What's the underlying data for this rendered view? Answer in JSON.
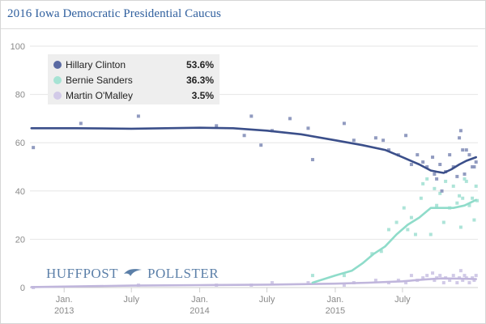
{
  "header": {
    "title": "2016 Iowa Democratic Presidential Caucus"
  },
  "brand": {
    "left": "HUFFPOST",
    "right": "POLLSTER"
  },
  "chart_data": {
    "type": "line",
    "title": "2016 Iowa Democratic Presidential Caucus",
    "ylim": [
      0,
      100
    ],
    "xlim": [
      "2012-10-01",
      "2016-01-20"
    ],
    "yticks": [
      0,
      20,
      40,
      60,
      80,
      100
    ],
    "xticks": [
      {
        "date": "2013-01-01",
        "label": "Jan.",
        "sub": "2013"
      },
      {
        "date": "2013-07-01",
        "label": "July",
        "sub": ""
      },
      {
        "date": "2014-01-01",
        "label": "Jan.",
        "sub": "2014"
      },
      {
        "date": "2014-07-01",
        "label": "July",
        "sub": ""
      },
      {
        "date": "2015-01-01",
        "label": "Jan.",
        "sub": "2015"
      },
      {
        "date": "2015-07-01",
        "label": "July",
        "sub": ""
      }
    ],
    "grid": true,
    "legend_position": "top-left",
    "series": [
      {
        "name": "Hillary Clinton",
        "latest": "53.6%",
        "color": "#3b4f8a",
        "dot_color": "#8b96bd",
        "trend": [
          [
            "2012-10-05",
            66
          ],
          [
            "2013-02-01",
            66
          ],
          [
            "2013-07-01",
            65.8
          ],
          [
            "2014-01-01",
            66.2
          ],
          [
            "2014-04-01",
            66
          ],
          [
            "2014-07-01",
            65
          ],
          [
            "2014-10-01",
            63.5
          ],
          [
            "2015-01-01",
            61
          ],
          [
            "2015-03-15",
            59
          ],
          [
            "2015-05-15",
            57
          ],
          [
            "2015-07-01",
            54
          ],
          [
            "2015-08-15",
            51
          ],
          [
            "2015-09-15",
            48.5
          ],
          [
            "2015-10-01",
            48
          ],
          [
            "2015-10-20",
            47.5
          ],
          [
            "2015-11-10",
            49
          ],
          [
            "2015-12-01",
            51
          ],
          [
            "2015-12-20",
            52.5
          ],
          [
            "2016-01-15",
            54
          ]
        ],
        "polls": [
          [
            "2012-10-10",
            58
          ],
          [
            "2013-02-15",
            68
          ],
          [
            "2013-07-20",
            71
          ],
          [
            "2014-02-15",
            67
          ],
          [
            "2014-05-01",
            63
          ],
          [
            "2014-05-20",
            71
          ],
          [
            "2014-06-15",
            59
          ],
          [
            "2014-07-15",
            65
          ],
          [
            "2014-09-01",
            70
          ],
          [
            "2014-10-20",
            66
          ],
          [
            "2014-11-01",
            53
          ],
          [
            "2015-01-25",
            68
          ],
          [
            "2015-02-20",
            61
          ],
          [
            "2015-04-20",
            62
          ],
          [
            "2015-05-10",
            61
          ],
          [
            "2015-05-25",
            57
          ],
          [
            "2015-06-20",
            55
          ],
          [
            "2015-07-10",
            63
          ],
          [
            "2015-07-25",
            51
          ],
          [
            "2015-08-10",
            55
          ],
          [
            "2015-08-25",
            52
          ],
          [
            "2015-09-05",
            50
          ],
          [
            "2015-09-20",
            54
          ],
          [
            "2015-09-25",
            47
          ],
          [
            "2015-10-01",
            45
          ],
          [
            "2015-10-10",
            51
          ],
          [
            "2015-10-15",
            40
          ],
          [
            "2015-10-25",
            48
          ],
          [
            "2015-11-05",
            55
          ],
          [
            "2015-11-15",
            50
          ],
          [
            "2015-11-25",
            46
          ],
          [
            "2015-12-01",
            62
          ],
          [
            "2015-12-05",
            65
          ],
          [
            "2015-12-10",
            57
          ],
          [
            "2015-12-15",
            47
          ],
          [
            "2015-12-20",
            57
          ],
          [
            "2015-12-28",
            55
          ],
          [
            "2016-01-05",
            50
          ],
          [
            "2016-01-10",
            50
          ],
          [
            "2016-01-15",
            52
          ]
        ]
      },
      {
        "name": "Bernie Sanders",
        "latest": "36.3%",
        "color": "#8fdcca",
        "dot_color": "#a9e3d6",
        "trend": [
          [
            "2014-11-01",
            2
          ],
          [
            "2015-01-01",
            5
          ],
          [
            "2015-02-15",
            7
          ],
          [
            "2015-03-15",
            10
          ],
          [
            "2015-04-15",
            14
          ],
          [
            "2015-05-15",
            17
          ],
          [
            "2015-06-15",
            22
          ],
          [
            "2015-07-15",
            26
          ],
          [
            "2015-08-15",
            29
          ],
          [
            "2015-09-15",
            33
          ],
          [
            "2015-10-15",
            33
          ],
          [
            "2015-11-15",
            33
          ],
          [
            "2015-12-15",
            34
          ],
          [
            "2016-01-15",
            36.3
          ]
        ],
        "polls": [
          [
            "2014-11-01",
            5
          ],
          [
            "2015-01-25",
            5
          ],
          [
            "2015-04-10",
            14
          ],
          [
            "2015-05-05",
            15
          ],
          [
            "2015-05-25",
            24
          ],
          [
            "2015-06-15",
            27
          ],
          [
            "2015-07-05",
            33
          ],
          [
            "2015-07-15",
            24
          ],
          [
            "2015-07-25",
            29
          ],
          [
            "2015-08-05",
            22
          ],
          [
            "2015-08-20",
            37
          ],
          [
            "2015-08-25",
            43
          ],
          [
            "2015-09-05",
            45
          ],
          [
            "2015-09-15",
            22
          ],
          [
            "2015-09-25",
            41
          ],
          [
            "2015-10-01",
            34
          ],
          [
            "2015-10-10",
            39
          ],
          [
            "2015-10-20",
            27
          ],
          [
            "2015-10-25",
            44
          ],
          [
            "2015-11-05",
            33
          ],
          [
            "2015-11-15",
            42
          ],
          [
            "2015-11-25",
            35
          ],
          [
            "2015-12-01",
            38
          ],
          [
            "2015-12-05",
            25
          ],
          [
            "2015-12-10",
            37
          ],
          [
            "2015-12-15",
            45
          ],
          [
            "2015-12-20",
            44
          ],
          [
            "2015-12-28",
            34
          ],
          [
            "2016-01-05",
            37
          ],
          [
            "2016-01-10",
            28
          ],
          [
            "2016-01-15",
            42
          ],
          [
            "2016-01-18",
            36
          ]
        ]
      },
      {
        "name": "Martin O'Malley",
        "latest": "3.5%",
        "color": "#c0b6dc",
        "dot_color": "#cfc7e6",
        "trend": [
          [
            "2012-10-05",
            0.2
          ],
          [
            "2013-07-01",
            0.8
          ],
          [
            "2014-01-01",
            1.0
          ],
          [
            "2014-07-01",
            1.2
          ],
          [
            "2015-01-01",
            1.6
          ],
          [
            "2015-04-01",
            2.0
          ],
          [
            "2015-07-01",
            2.6
          ],
          [
            "2015-09-01",
            3.4
          ],
          [
            "2015-10-15",
            3.8
          ],
          [
            "2015-12-01",
            3.7
          ],
          [
            "2016-01-15",
            3.5
          ]
        ],
        "polls": [
          [
            "2012-10-10",
            0
          ],
          [
            "2013-07-20",
            1
          ],
          [
            "2014-02-15",
            1
          ],
          [
            "2014-05-20",
            1
          ],
          [
            "2014-07-15",
            2
          ],
          [
            "2014-10-20",
            2
          ],
          [
            "2015-01-25",
            1
          ],
          [
            "2015-02-20",
            2
          ],
          [
            "2015-04-20",
            3
          ],
          [
            "2015-05-25",
            2
          ],
          [
            "2015-06-20",
            3
          ],
          [
            "2015-07-10",
            2
          ],
          [
            "2015-07-25",
            5
          ],
          [
            "2015-08-10",
            3
          ],
          [
            "2015-08-25",
            4
          ],
          [
            "2015-09-05",
            5
          ],
          [
            "2015-09-20",
            6
          ],
          [
            "2015-09-25",
            3
          ],
          [
            "2015-10-01",
            4
          ],
          [
            "2015-10-10",
            5
          ],
          [
            "2015-10-20",
            2
          ],
          [
            "2015-10-25",
            4
          ],
          [
            "2015-11-05",
            3
          ],
          [
            "2015-11-15",
            5
          ],
          [
            "2015-11-25",
            2
          ],
          [
            "2015-12-01",
            4
          ],
          [
            "2015-12-05",
            7
          ],
          [
            "2015-12-10",
            3
          ],
          [
            "2015-12-15",
            5
          ],
          [
            "2015-12-20",
            4
          ],
          [
            "2015-12-28",
            2
          ],
          [
            "2016-01-05",
            4
          ],
          [
            "2016-01-10",
            3
          ],
          [
            "2016-01-15",
            5
          ]
        ]
      }
    ]
  }
}
